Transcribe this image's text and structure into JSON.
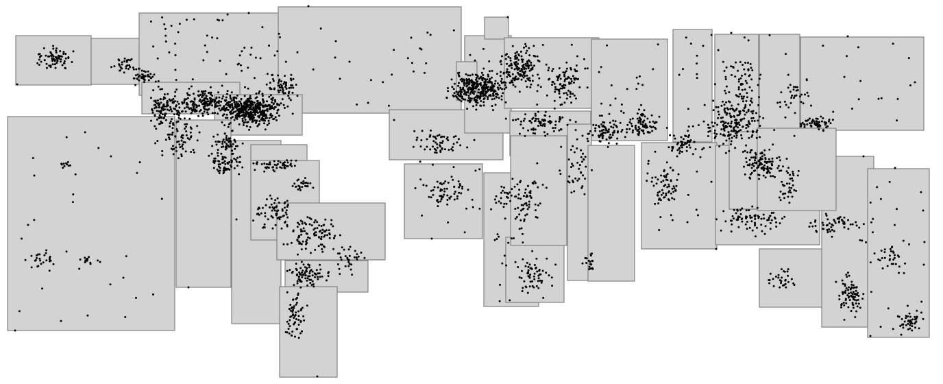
{
  "view": {
    "width": 1376,
    "height": 560,
    "background": "#ffffff",
    "box_fill": "#d3d3d3",
    "box_stroke": "#808080",
    "point_color": "#000000"
  }
}
